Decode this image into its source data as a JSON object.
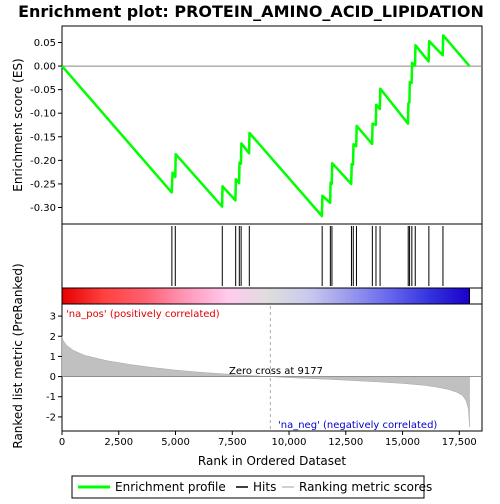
{
  "chart_data": {
    "type": "line",
    "title": "Enrichment plot: PROTEIN_AMINO_ACID_LIPIDATION",
    "top_panel": {
      "ylabel": "Enrichment score (ES)",
      "ylim": [
        -0.335,
        0.085
      ],
      "yticks": [
        "0.05",
        "0.00",
        "-0.05",
        "-0.10",
        "-0.15",
        "-0.20",
        "-0.25",
        "-0.30"
      ],
      "ytick_values": [
        0.05,
        0.0,
        -0.05,
        -0.1,
        -0.15,
        -0.2,
        -0.25,
        -0.3
      ],
      "series_name": "Enrichment profile",
      "color": "#00ff00",
      "x": [
        0,
        4830,
        4870,
        4990,
        5010,
        7050,
        7070,
        7640,
        7660,
        7800,
        7820,
        7880,
        7900,
        8240,
        8260,
        11450,
        11470,
        11810,
        11830,
        11880,
        11900,
        12740,
        12760,
        12820,
        12840,
        12960,
        12980,
        13660,
        13680,
        13820,
        13840,
        14000,
        14020,
        15240,
        15260,
        15300,
        15320,
        15400,
        15420,
        15550,
        15570,
        16150,
        16170,
        16770,
        16790,
        17950
      ],
      "y": [
        0.0,
        -0.268,
        -0.226,
        -0.235,
        -0.187,
        -0.298,
        -0.255,
        -0.285,
        -0.24,
        -0.248,
        -0.205,
        -0.207,
        -0.164,
        -0.185,
        -0.142,
        -0.318,
        -0.275,
        -0.29,
        -0.247,
        -0.25,
        -0.206,
        -0.25,
        -0.208,
        -0.209,
        -0.166,
        -0.17,
        -0.127,
        -0.165,
        -0.122,
        -0.125,
        -0.082,
        -0.091,
        -0.048,
        -0.122,
        -0.079,
        -0.077,
        -0.034,
        -0.036,
        0.007,
        0.001,
        0.044,
        0.01,
        0.053,
        0.023,
        0.065,
        0.0
      ]
    },
    "hits": [
      4840,
      4990,
      7060,
      7650,
      7810,
      7890,
      8250,
      11460,
      11820,
      11890,
      12750,
      12830,
      12970,
      13670,
      13830,
      14010,
      15250,
      15310,
      15410,
      15560,
      16160,
      16780
    ],
    "hits_name": "Hits",
    "gradient_bar": {
      "pos_label": "'na_pos' (positively correlated)",
      "neg_label": "'na_neg' (negatively correlated)",
      "colors": [
        "#e60000",
        "#ff4040",
        "#ff6070",
        "#ff99bb",
        "#ffccee",
        "#dddddd",
        "#c8c8ee",
        "#9999ee",
        "#6666ee",
        "#3333dd",
        "#1a00cc"
      ]
    },
    "bottom_panel": {
      "ylabel": "Ranked list metric (PreRanked)",
      "ylim": [
        -2.7,
        3.6
      ],
      "yticks": [
        "3",
        "2",
        "1",
        "0",
        "-1",
        "-2"
      ],
      "ytick_values": [
        3,
        2,
        1,
        0,
        -1,
        -2
      ],
      "series_name": "Ranking metric scores",
      "fill_color": "#c0c0c0",
      "x": [
        0,
        50,
        200,
        500,
        1000,
        2000,
        3000,
        4000,
        5000,
        6000,
        7000,
        8000,
        9177,
        10000,
        11000,
        12000,
        13000,
        14000,
        15000,
        16000,
        16500,
        17000,
        17400,
        17650,
        17800,
        17900,
        17950
      ],
      "y": [
        2.0,
        1.8,
        1.55,
        1.3,
        1.05,
        0.78,
        0.6,
        0.45,
        0.32,
        0.22,
        0.14,
        0.07,
        0.0,
        -0.05,
        -0.1,
        -0.15,
        -0.21,
        -0.27,
        -0.34,
        -0.44,
        -0.52,
        -0.63,
        -0.78,
        -0.95,
        -1.2,
        -1.6,
        -2.5
      ],
      "zero_cross_label": "Zero cross at 9177",
      "zero_cross": 9177
    },
    "xaxis": {
      "label": "Rank in Ordered Dataset",
      "xlim": [
        0,
        18500
      ],
      "xticks": [
        "0",
        "2,500",
        "5,000",
        "7,500",
        "10,000",
        "12,500",
        "15,000",
        "17,500"
      ],
      "xtick_values": [
        0,
        2500,
        5000,
        7500,
        10000,
        12500,
        15000,
        17500
      ]
    },
    "legend": {
      "placement": "bottom",
      "items": [
        "Enrichment profile",
        "Hits",
        "Ranking metric scores"
      ]
    }
  }
}
